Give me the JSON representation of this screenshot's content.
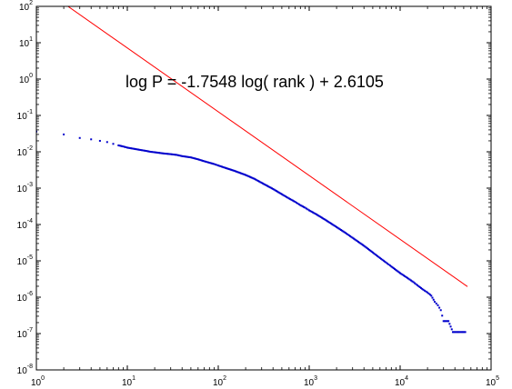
{
  "chart_data": {
    "type": "scatter",
    "title": "",
    "xlabel": "",
    "ylabel": "",
    "x_scale": "log",
    "y_scale": "log",
    "xlim": [
      1,
      100000
    ],
    "ylim": [
      1e-08,
      100
    ],
    "grid": false,
    "x_ticks": [
      {
        "base": "10",
        "exp": "0",
        "value": 1
      },
      {
        "base": "10",
        "exp": "1",
        "value": 10
      },
      {
        "base": "10",
        "exp": "2",
        "value": 100
      },
      {
        "base": "10",
        "exp": "3",
        "value": 1000
      },
      {
        "base": "10",
        "exp": "4",
        "value": 10000
      },
      {
        "base": "10",
        "exp": "5",
        "value": 100000
      }
    ],
    "y_ticks": [
      {
        "base": "10",
        "exp": "-8",
        "value": 1e-08
      },
      {
        "base": "10",
        "exp": "-7",
        "value": 1e-07
      },
      {
        "base": "10",
        "exp": "-6",
        "value": 1e-06
      },
      {
        "base": "10",
        "exp": "-5",
        "value": 1e-05
      },
      {
        "base": "10",
        "exp": "-4",
        "value": 0.0001
      },
      {
        "base": "10",
        "exp": "-3",
        "value": 0.001
      },
      {
        "base": "10",
        "exp": "-2",
        "value": 0.01
      },
      {
        "base": "10",
        "exp": "-1",
        "value": 0.1
      },
      {
        "base": "10",
        "exp": "0",
        "value": 1
      },
      {
        "base": "10",
        "exp": "1",
        "value": 10
      },
      {
        "base": "10",
        "exp": "2",
        "value": 100
      }
    ],
    "annotation": "log P = -1.7548 log( rank ) + 2.6105",
    "fit_line": {
      "slope": -1.7548,
      "intercept": 2.6105,
      "x_range": [
        1,
        55000
      ],
      "color": "#ff0000"
    },
    "series": [
      {
        "color": "#0000cc",
        "points": [
          [
            1,
            0.036
          ],
          [
            2,
            0.03
          ],
          [
            3,
            0.024
          ],
          [
            4,
            0.022
          ],
          [
            5,
            0.02
          ],
          [
            6,
            0.0185
          ],
          [
            7,
            0.0165
          ],
          [
            8,
            0.015
          ],
          [
            9,
            0.014
          ],
          [
            10,
            0.013
          ],
          [
            12,
            0.012
          ],
          [
            14,
            0.0112
          ],
          [
            16,
            0.0106
          ],
          [
            18,
            0.01
          ],
          [
            20,
            0.0097
          ],
          [
            25,
            0.009
          ],
          [
            30,
            0.0086
          ],
          [
            35,
            0.0082
          ],
          [
            40,
            0.0076
          ],
          [
            50,
            0.007
          ],
          [
            60,
            0.0062
          ],
          [
            70,
            0.0055
          ],
          [
            80,
            0.005
          ],
          [
            90,
            0.0046
          ],
          [
            100,
            0.0042
          ],
          [
            120,
            0.0036
          ],
          [
            150,
            0.003
          ],
          [
            200,
            0.0023
          ],
          [
            250,
            0.0018
          ],
          [
            300,
            0.0014
          ],
          [
            400,
            0.00095
          ],
          [
            500,
            0.00068
          ],
          [
            600,
            0.00052
          ],
          [
            700,
            0.00042
          ],
          [
            800,
            0.00034
          ],
          [
            900,
            0.00029
          ],
          [
            1000,
            0.000245
          ],
          [
            1200,
            0.00019
          ],
          [
            1500,
            0.000135
          ],
          [
            2000,
            8.5e-05
          ],
          [
            2500,
            5.9e-05
          ],
          [
            3000,
            4.3e-05
          ],
          [
            4000,
            2.6e-05
          ],
          [
            5000,
            1.7e-05
          ],
          [
            6000,
            1.2e-05
          ],
          [
            7000,
            9e-06
          ],
          [
            8000,
            7e-06
          ],
          [
            10000,
            4.6e-06
          ],
          [
            12000,
            3.4e-06
          ],
          [
            14000,
            2.6e-06
          ],
          [
            16000,
            2e-06
          ],
          [
            18000,
            1.6e-06
          ],
          [
            20000,
            1.35e-06
          ],
          [
            22000,
            1.1e-06
          ],
          [
            24000,
            7.5e-07
          ],
          [
            26000,
            6e-07
          ],
          [
            28000,
            4.4e-07
          ],
          [
            30000,
            2.2e-07
          ],
          [
            34000,
            2.2e-07
          ],
          [
            38000,
            1.1e-07
          ],
          [
            45000,
            1.1e-07
          ],
          [
            52000,
            1.1e-07
          ]
        ]
      }
    ]
  }
}
